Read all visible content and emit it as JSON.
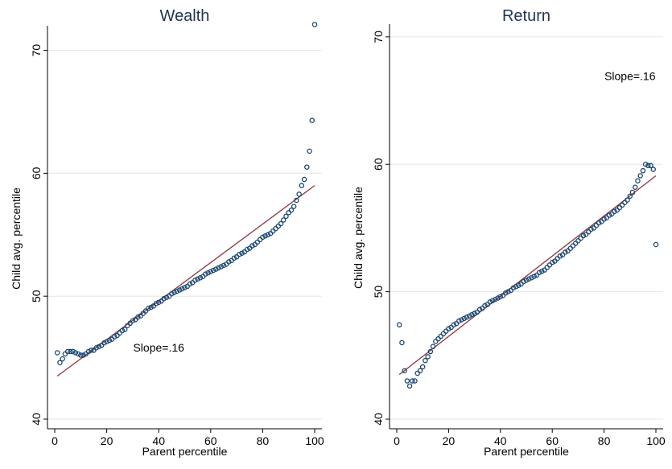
{
  "colors": {
    "points": "#1a476f",
    "fit_line": "#90353b",
    "grid": "#e6e6e6",
    "title": "#1f3552"
  },
  "chart_data": [
    {
      "type": "scatter",
      "title": "Wealth",
      "xlabel": "Parent percentile",
      "ylabel": "Child avg. percentile",
      "xlim": [
        0,
        100
      ],
      "ylim": [
        40,
        72
      ],
      "xticks": [
        0,
        20,
        40,
        60,
        80,
        100
      ],
      "yticks": [
        40,
        50,
        60,
        70
      ],
      "grid": true,
      "annotation": {
        "text": "Slope=.16",
        "x": 40,
        "y": 45.5
      },
      "fit_line": {
        "x": [
          1,
          100
        ],
        "y": [
          43.5,
          59.0
        ]
      },
      "series": [
        {
          "x": [
            1,
            2,
            3,
            4,
            5,
            6,
            7,
            8,
            9,
            10,
            11,
            12,
            13,
            14,
            15,
            16,
            17,
            18,
            19,
            20,
            21,
            22,
            23,
            24,
            25,
            26,
            27,
            28,
            29,
            30,
            31,
            32,
            33,
            34,
            35,
            36,
            37,
            38,
            39,
            40,
            41,
            42,
            43,
            44,
            45,
            46,
            47,
            48,
            49,
            50,
            51,
            52,
            53,
            54,
            55,
            56,
            57,
            58,
            59,
            60,
            61,
            62,
            63,
            64,
            65,
            66,
            67,
            68,
            69,
            70,
            71,
            72,
            73,
            74,
            75,
            76,
            77,
            78,
            79,
            80,
            81,
            82,
            83,
            84,
            85,
            86,
            87,
            88,
            89,
            90,
            91,
            92,
            93,
            94,
            95,
            96,
            97,
            98,
            99,
            100
          ],
          "y": [
            45.4,
            44.6,
            44.9,
            45.3,
            45.5,
            45.5,
            45.5,
            45.4,
            45.3,
            45.2,
            45.2,
            45.3,
            45.5,
            45.6,
            45.6,
            45.8,
            45.9,
            46.0,
            46.2,
            46.3,
            46.4,
            46.5,
            46.7,
            46.8,
            47.0,
            47.2,
            47.3,
            47.6,
            47.8,
            48.0,
            48.1,
            48.3,
            48.4,
            48.6,
            48.8,
            49.0,
            49.1,
            49.2,
            49.4,
            49.5,
            49.6,
            49.8,
            49.9,
            50.0,
            50.2,
            50.3,
            50.4,
            50.5,
            50.6,
            50.7,
            50.8,
            51.0,
            51.1,
            51.3,
            51.4,
            51.5,
            51.6,
            51.8,
            51.9,
            52.0,
            52.1,
            52.2,
            52.3,
            52.4,
            52.5,
            52.6,
            52.8,
            52.9,
            53.1,
            53.2,
            53.4,
            53.5,
            53.6,
            53.8,
            53.9,
            54.1,
            54.2,
            54.4,
            54.6,
            54.8,
            54.9,
            55.0,
            55.1,
            55.3,
            55.5,
            55.7,
            55.9,
            56.2,
            56.5,
            56.8,
            57.0,
            57.3,
            57.8,
            58.3,
            59.0,
            59.5,
            60.5,
            61.8,
            64.3,
            72.1
          ]
        }
      ]
    },
    {
      "type": "scatter",
      "title": "Return",
      "xlabel": "Parent percentile",
      "ylabel": "Child avg. percentile",
      "xlim": [
        0,
        100
      ],
      "ylim": [
        40,
        71
      ],
      "xticks": [
        0,
        20,
        40,
        60,
        80,
        100
      ],
      "yticks": [
        40,
        50,
        60,
        70
      ],
      "grid": true,
      "annotation": {
        "text": "Slope=.16",
        "x": 90,
        "y": 66.6
      },
      "fit_line": {
        "x": [
          1,
          100
        ],
        "y": [
          43.5,
          59.1
        ]
      },
      "series": [
        {
          "x": [
            1,
            2,
            3,
            4,
            5,
            6,
            7,
            8,
            9,
            10,
            11,
            12,
            13,
            14,
            15,
            16,
            17,
            18,
            19,
            20,
            21,
            22,
            23,
            24,
            25,
            26,
            27,
            28,
            29,
            30,
            31,
            32,
            33,
            34,
            35,
            36,
            37,
            38,
            39,
            40,
            41,
            42,
            43,
            44,
            45,
            46,
            47,
            48,
            49,
            50,
            51,
            52,
            53,
            54,
            55,
            56,
            57,
            58,
            59,
            60,
            61,
            62,
            63,
            64,
            65,
            66,
            67,
            68,
            69,
            70,
            71,
            72,
            73,
            74,
            75,
            76,
            77,
            78,
            79,
            80,
            81,
            82,
            83,
            84,
            85,
            86,
            87,
            88,
            89,
            90,
            91,
            92,
            93,
            94,
            95,
            96,
            97,
            98,
            99,
            100
          ],
          "y": [
            47.4,
            46.0,
            43.8,
            43.0,
            42.6,
            43.0,
            43.0,
            43.6,
            43.8,
            44.1,
            44.6,
            44.9,
            45.3,
            45.7,
            46.1,
            46.3,
            46.5,
            46.7,
            46.9,
            47.1,
            47.2,
            47.4,
            47.5,
            47.7,
            47.8,
            47.9,
            48.0,
            48.1,
            48.2,
            48.3,
            48.4,
            48.6,
            48.7,
            48.9,
            49.0,
            49.2,
            49.3,
            49.4,
            49.5,
            49.6,
            49.7,
            49.9,
            50.0,
            50.1,
            50.3,
            50.4,
            50.5,
            50.6,
            50.8,
            50.9,
            51.0,
            51.1,
            51.2,
            51.3,
            51.5,
            51.6,
            51.7,
            51.9,
            52.1,
            52.3,
            52.4,
            52.6,
            52.8,
            52.9,
            53.1,
            53.2,
            53.4,
            53.6,
            53.8,
            54.0,
            54.2,
            54.4,
            54.5,
            54.7,
            54.9,
            55.0,
            55.2,
            55.4,
            55.5,
            55.7,
            55.8,
            56.0,
            56.1,
            56.3,
            56.4,
            56.6,
            56.8,
            57.0,
            57.2,
            57.5,
            57.8,
            58.2,
            58.7,
            59.1,
            59.5,
            60.0,
            59.9,
            59.9,
            59.6,
            53.7
          ]
        }
      ]
    }
  ]
}
